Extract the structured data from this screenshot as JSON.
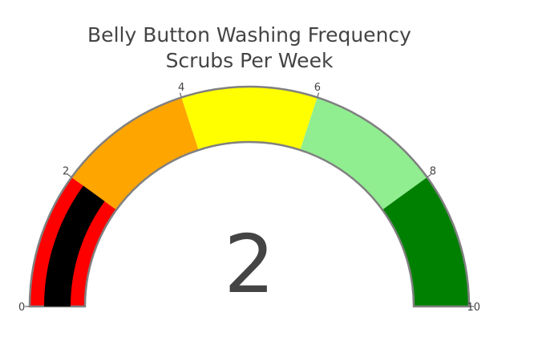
{
  "chart_data": {
    "type": "gauge",
    "title_line1": "Belly Button Washing Frequency",
    "title_line2": "Scrubs Per Week",
    "value": 2,
    "value_display": "2",
    "range": [
      0,
      10
    ],
    "ticks": [
      {
        "value": 0,
        "label": "0"
      },
      {
        "value": 2,
        "label": "2"
      },
      {
        "value": 4,
        "label": "4"
      },
      {
        "value": 6,
        "label": "6"
      },
      {
        "value": 8,
        "label": "8"
      },
      {
        "value": 10,
        "label": "10"
      }
    ],
    "steps": [
      {
        "range": [
          0,
          2
        ],
        "color": "#ff0000"
      },
      {
        "range": [
          2,
          4
        ],
        "color": "#ffa500"
      },
      {
        "range": [
          4,
          6
        ],
        "color": "#ffff00"
      },
      {
        "range": [
          6,
          8
        ],
        "color": "#90ee90"
      },
      {
        "range": [
          8,
          10
        ],
        "color": "#008000"
      }
    ],
    "bar_color": "#000000",
    "border_color": "#808080"
  }
}
